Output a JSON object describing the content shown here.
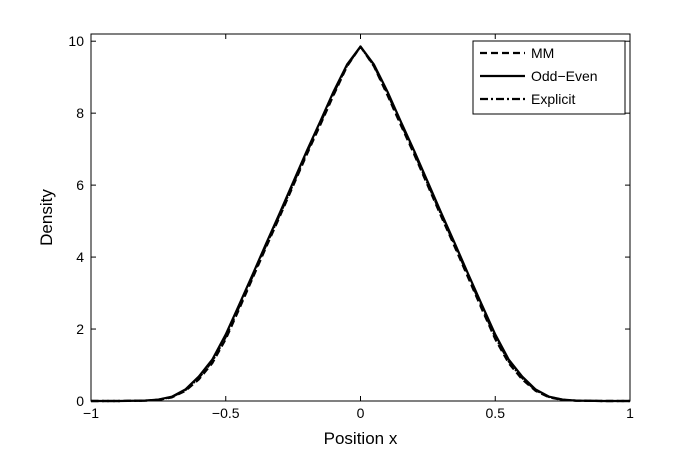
{
  "chart_data": {
    "type": "line",
    "title": "",
    "xlabel": "Position x",
    "ylabel": "Density",
    "xlim": [
      -1,
      1
    ],
    "ylim": [
      0,
      10.2
    ],
    "xticks": [
      -1,
      -0.5,
      0,
      0.5,
      1
    ],
    "xtick_labels": [
      "−1",
      "−0.5",
      "0",
      "0.5",
      "1"
    ],
    "yticks": [
      0,
      2,
      4,
      6,
      8,
      10
    ],
    "ytick_labels": [
      "0",
      "2",
      "4",
      "6",
      "8",
      "10"
    ],
    "grid": false,
    "legend_position": "top-right",
    "series": [
      {
        "name": "MM",
        "style": "dashed",
        "x": [
          -1,
          -0.9,
          -0.8,
          -0.75,
          -0.7,
          -0.65,
          -0.6,
          -0.55,
          -0.5,
          -0.45,
          -0.4,
          -0.35,
          -0.3,
          -0.25,
          -0.2,
          -0.15,
          -0.1,
          -0.05,
          0,
          0.05,
          0.1,
          0.15,
          0.2,
          0.25,
          0.3,
          0.35,
          0.4,
          0.45,
          0.5,
          0.55,
          0.6,
          0.65,
          0.7,
          0.75,
          0.8,
          0.9,
          1
        ],
        "y": [
          0,
          0,
          0.01,
          0.03,
          0.1,
          0.28,
          0.6,
          1.05,
          1.72,
          2.56,
          3.42,
          4.28,
          5.12,
          5.98,
          6.84,
          7.66,
          8.5,
          9.3,
          9.85,
          9.3,
          8.5,
          7.66,
          6.84,
          5.98,
          5.12,
          4.28,
          3.42,
          2.56,
          1.72,
          1.05,
          0.6,
          0.28,
          0.1,
          0.03,
          0.01,
          0,
          0
        ]
      },
      {
        "name": "Odd−Even",
        "style": "solid",
        "x": [
          -1,
          -0.9,
          -0.8,
          -0.75,
          -0.7,
          -0.65,
          -0.6,
          -0.55,
          -0.5,
          -0.45,
          -0.4,
          -0.35,
          -0.3,
          -0.25,
          -0.2,
          -0.15,
          -0.1,
          -0.05,
          0,
          0.05,
          0.1,
          0.15,
          0.2,
          0.25,
          0.3,
          0.35,
          0.4,
          0.45,
          0.5,
          0.55,
          0.6,
          0.65,
          0.7,
          0.75,
          0.8,
          0.9,
          1
        ],
        "y": [
          0,
          0,
          0.01,
          0.04,
          0.12,
          0.32,
          0.68,
          1.15,
          1.85,
          2.68,
          3.52,
          4.38,
          5.22,
          6.08,
          6.94,
          7.76,
          8.6,
          9.35,
          9.85,
          9.35,
          8.6,
          7.76,
          6.94,
          6.08,
          5.22,
          4.38,
          3.52,
          2.68,
          1.85,
          1.15,
          0.68,
          0.32,
          0.12,
          0.04,
          0.01,
          0,
          0
        ]
      },
      {
        "name": "Explicit",
        "style": "dashdot",
        "x": [
          -1,
          -0.9,
          -0.8,
          -0.75,
          -0.7,
          -0.65,
          -0.6,
          -0.55,
          -0.5,
          -0.45,
          -0.4,
          -0.35,
          -0.3,
          -0.25,
          -0.2,
          -0.15,
          -0.1,
          -0.05,
          0,
          0.05,
          0.1,
          0.15,
          0.2,
          0.25,
          0.3,
          0.35,
          0.4,
          0.45,
          0.5,
          0.55,
          0.6,
          0.65,
          0.7,
          0.75,
          0.8,
          0.9,
          1
        ],
        "y": [
          0,
          0,
          0.01,
          0.035,
          0.11,
          0.3,
          0.64,
          1.1,
          1.78,
          2.62,
          3.47,
          4.33,
          5.17,
          6.03,
          6.89,
          7.71,
          8.55,
          9.32,
          9.85,
          9.32,
          8.55,
          7.71,
          6.89,
          6.03,
          5.17,
          4.33,
          3.47,
          2.62,
          1.78,
          1.1,
          0.64,
          0.3,
          0.11,
          0.035,
          0.01,
          0,
          0
        ]
      }
    ]
  }
}
